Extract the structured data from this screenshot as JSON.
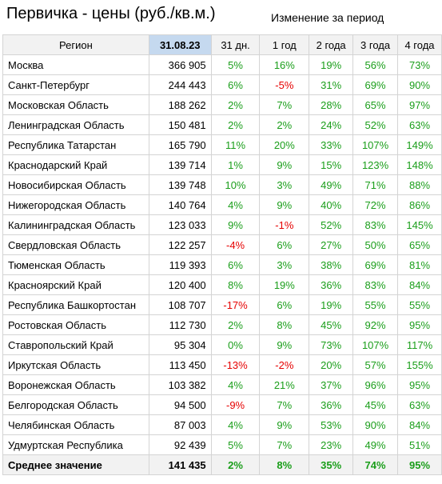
{
  "header": {
    "title": "Первичка - цены (руб./кв.м.)",
    "subtitle": "Изменение за период"
  },
  "table": {
    "columns": [
      "Регион",
      "31.08.23",
      "31 дн.",
      "1 год",
      "2 года",
      "3 года",
      "4 года"
    ],
    "rows": [
      {
        "region": "Москва",
        "price": "366 905",
        "changes": [
          "5%",
          "16%",
          "19%",
          "56%",
          "73%"
        ]
      },
      {
        "region": "Санкт-Петербург",
        "price": "244 443",
        "changes": [
          "6%",
          "-5%",
          "31%",
          "69%",
          "90%"
        ]
      },
      {
        "region": "Московская Область",
        "price": "188 262",
        "changes": [
          "2%",
          "7%",
          "28%",
          "65%",
          "97%"
        ]
      },
      {
        "region": "Ленинградская Область",
        "price": "150 481",
        "changes": [
          "2%",
          "2%",
          "24%",
          "52%",
          "63%"
        ]
      },
      {
        "region": "Республика Татарстан",
        "price": "165 790",
        "changes": [
          "11%",
          "20%",
          "33%",
          "107%",
          "149%"
        ]
      },
      {
        "region": "Краснодарский Край",
        "price": "139 714",
        "changes": [
          "1%",
          "9%",
          "15%",
          "123%",
          "148%"
        ]
      },
      {
        "region": "Новосибирская Область",
        "price": "139 748",
        "changes": [
          "10%",
          "3%",
          "49%",
          "71%",
          "88%"
        ]
      },
      {
        "region": "Нижегородская Область",
        "price": "140 764",
        "changes": [
          "4%",
          "9%",
          "40%",
          "72%",
          "86%"
        ]
      },
      {
        "region": "Калининградская Область",
        "price": "123 033",
        "changes": [
          "9%",
          "-1%",
          "52%",
          "83%",
          "145%"
        ]
      },
      {
        "region": "Свердловская Область",
        "price": "122 257",
        "changes": [
          "-4%",
          "6%",
          "27%",
          "50%",
          "65%"
        ]
      },
      {
        "region": "Тюменская Область",
        "price": "119 393",
        "changes": [
          "6%",
          "3%",
          "38%",
          "69%",
          "81%"
        ]
      },
      {
        "region": "Красноярский Край",
        "price": "120 400",
        "changes": [
          "8%",
          "19%",
          "36%",
          "83%",
          "84%"
        ]
      },
      {
        "region": "Республика Башкортостан",
        "price": "108 707",
        "changes": [
          "-17%",
          "6%",
          "19%",
          "55%",
          "55%"
        ]
      },
      {
        "region": "Ростовская Область",
        "price": "112 730",
        "changes": [
          "2%",
          "8%",
          "45%",
          "92%",
          "95%"
        ]
      },
      {
        "region": "Ставропольский Край",
        "price": "95 304",
        "changes": [
          "0%",
          "9%",
          "73%",
          "107%",
          "117%"
        ]
      },
      {
        "region": "Иркутская Область",
        "price": "113 450",
        "changes": [
          "-13%",
          "-2%",
          "20%",
          "57%",
          "155%"
        ]
      },
      {
        "region": "Воронежская Область",
        "price": "103 382",
        "changes": [
          "4%",
          "21%",
          "37%",
          "96%",
          "95%"
        ]
      },
      {
        "region": "Белгородская Область",
        "price": "94 500",
        "changes": [
          "-9%",
          "7%",
          "36%",
          "45%",
          "63%"
        ]
      },
      {
        "region": "Челябинская Область",
        "price": "87 003",
        "changes": [
          "4%",
          "9%",
          "53%",
          "90%",
          "84%"
        ]
      },
      {
        "region": "Удмуртская Республика",
        "price": "92 439",
        "changes": [
          "5%",
          "7%",
          "23%",
          "49%",
          "51%"
        ]
      }
    ],
    "average": {
      "region": "Среднее значение",
      "price": "141 435",
      "changes": [
        "2%",
        "8%",
        "35%",
        "74%",
        "95%"
      ]
    }
  },
  "colors": {
    "positive": "#1a9e1a",
    "negative": "#e60000",
    "header_bg": "#f2f2f2",
    "date_header_bg": "#c5d9ef"
  }
}
